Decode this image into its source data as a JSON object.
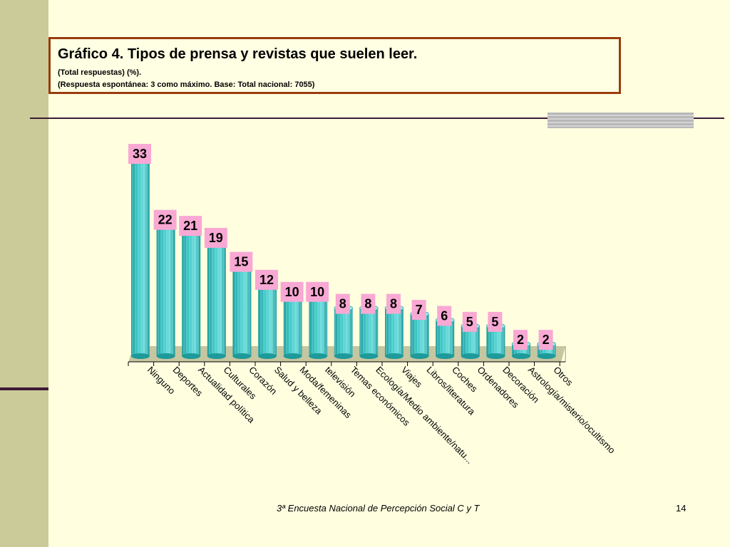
{
  "header": {
    "title": "Gráfico 4. Tipos de prensa y revistas que suelen leer.",
    "subtitle1": "(Total respuestas) (%).",
    "subtitle2": "(Respuesta espontánea: 3 como máximo. Base: Total nacional: 7055)"
  },
  "footer": {
    "source": "3ª Encuesta Nacional de Percepción Social C y T",
    "page": "14"
  },
  "colors": {
    "bar": "#3EC7C7",
    "bar_dark": "#1E9A9A",
    "label_bg": "#F9A8D4",
    "floor": "#C6C6A0"
  },
  "chart_data": {
    "type": "bar",
    "categories": [
      "Ninguno",
      "Deportes",
      "Actualidad política",
      "Culturales",
      "Corazón",
      "Salud y belleza",
      "Moda/femeninas",
      "televisión",
      "Temas económicos",
      "Ecología/Medio ambiente/natu...",
      "Viajes",
      "Libros/literatura",
      "Coches",
      "Ordenadores",
      "Decoración",
      "Astrología/misterio/ocultismo",
      "Otros"
    ],
    "values": [
      33,
      22,
      21,
      19,
      15,
      12,
      10,
      10,
      8,
      8,
      8,
      7,
      6,
      5,
      5,
      2,
      2
    ],
    "ylim": [
      0,
      33
    ],
    "grid": false,
    "legend": "none"
  }
}
